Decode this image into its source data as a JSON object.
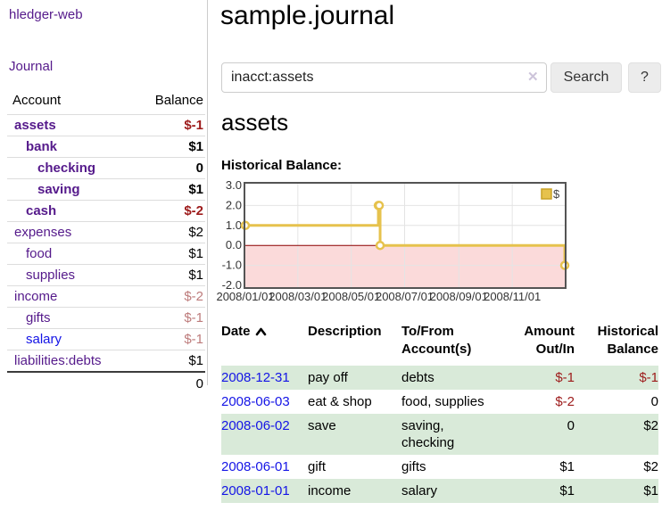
{
  "brand": "hledger-web",
  "nav": {
    "journal": "Journal"
  },
  "sidebar": {
    "headers": {
      "account": "Account",
      "balance": "Balance"
    },
    "accounts": [
      {
        "name": "assets",
        "balance": "$-1"
      },
      {
        "name": "bank",
        "balance": "$1"
      },
      {
        "name": "checking",
        "balance": "0"
      },
      {
        "name": "saving",
        "balance": "$1"
      },
      {
        "name": "cash",
        "balance": "$-2"
      },
      {
        "name": "expenses",
        "balance": "$2"
      },
      {
        "name": "food",
        "balance": "$1"
      },
      {
        "name": "supplies",
        "balance": "$1"
      },
      {
        "name": "income",
        "balance": "$-2"
      },
      {
        "name": "gifts",
        "balance": "$-1"
      },
      {
        "name": "salary",
        "balance": "$-1"
      },
      {
        "name": "liabilities:debts",
        "balance": "$1"
      }
    ],
    "total": "0"
  },
  "header": {
    "title": "sample.journal"
  },
  "search": {
    "query": "inacct:assets",
    "clear_icon": "✕",
    "button": "Search",
    "help": "?"
  },
  "account_view": {
    "title": "assets",
    "chart_heading": "Historical Balance:"
  },
  "chart_data": {
    "type": "line",
    "step": true,
    "title": "Historical Balance:",
    "legend": "$",
    "legend_position": "top-right",
    "grid": true,
    "x_range": [
      "2008-01-01",
      "2008-12-31"
    ],
    "y_range": [
      -2,
      3
    ],
    "y_ticks": [
      "3.0",
      "2.0",
      "1.0",
      "0.0",
      "-1.0",
      "-2.0"
    ],
    "x_ticks": [
      "2008/01/01",
      "2008/03/01",
      "2008/05/01",
      "2008/07/01",
      "2008/09/01",
      "2008/11/01"
    ],
    "series": [
      {
        "name": "$",
        "color": "#E6C24D",
        "points": [
          [
            "2008-01-01",
            1
          ],
          [
            "2008-06-01",
            2
          ],
          [
            "2008-06-02",
            2
          ],
          [
            "2008-06-03",
            0
          ],
          [
            "2008-12-31",
            -1
          ]
        ]
      }
    ],
    "negative_region_color": "#FBDADA",
    "zero_line_color": "#8B0000"
  },
  "register": {
    "headers": {
      "date": "Date",
      "description": "Description",
      "account_line1": "To/From",
      "account_line2": "Account(s)",
      "amount_line1": "Amount",
      "amount_line2": "Out/In",
      "balance_line1": "Historical",
      "balance_line2": "Balance"
    },
    "rows": [
      {
        "date": "2008-12-31",
        "description": "pay off",
        "accounts": "debts",
        "amount": "$-1",
        "balance": "$-1"
      },
      {
        "date": "2008-06-03",
        "description": "eat & shop",
        "accounts": "food, supplies",
        "amount": "$-2",
        "balance": "0"
      },
      {
        "date": "2008-06-02",
        "description": "save",
        "accounts": "saving,\nchecking",
        "amount": "0",
        "balance": "$2"
      },
      {
        "date": "2008-06-01",
        "description": "gift",
        "accounts": "gifts",
        "amount": "$1",
        "balance": "$2"
      },
      {
        "date": "2008-01-01",
        "description": "income",
        "accounts": "salary",
        "amount": "$1",
        "balance": "$1"
      }
    ]
  },
  "colors": {
    "accent_purple": "#551A8B",
    "link_blue": "#1414E6",
    "negative_strong": "#9D1B1B",
    "negative_faded": "#BD7B7B",
    "row_stripe_green": "#D9EAD9",
    "chart_line_gold": "#E6C24D",
    "chart_negative_fill": "#FBDADA",
    "chart_zero_line": "#8B0000"
  }
}
